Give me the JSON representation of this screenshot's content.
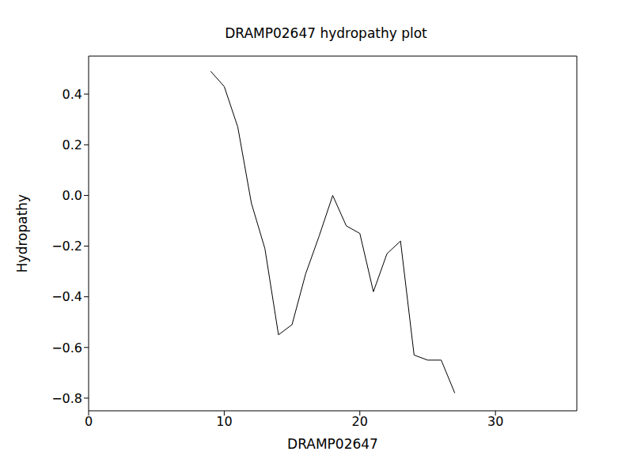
{
  "chart_data": {
    "type": "line",
    "title": "DRAMP02647 hydropathy plot",
    "x_label": "DRAMP02647",
    "y_label": "Hydropathy",
    "x": [
      9,
      10,
      11,
      12,
      13,
      14,
      15,
      16,
      17,
      18,
      19,
      20,
      21,
      22,
      23,
      24,
      25,
      26,
      27
    ],
    "values": [
      0.49,
      0.43,
      0.27,
      -0.03,
      -0.21,
      -0.55,
      -0.51,
      -0.31,
      -0.16,
      0.0,
      -0.12,
      -0.15,
      -0.38,
      -0.23,
      -0.18,
      -0.63,
      -0.65,
      -0.65,
      -0.78
    ],
    "color": "#000000",
    "xlim": [
      0,
      36
    ],
    "xticks": [
      0,
      10,
      20,
      30
    ],
    "ylim": [
      -0.85,
      0.55
    ],
    "yticks": [
      {
        "value": -0.8,
        "label": "−0.8"
      },
      {
        "value": -0.6,
        "label": "−0.6"
      },
      {
        "value": -0.4,
        "label": "−0.4"
      },
      {
        "value": -0.2,
        "label": "−0.2"
      },
      {
        "value": 0,
        "label": "0.0"
      },
      0.2,
      0.4
    ],
    "grid": false
  }
}
